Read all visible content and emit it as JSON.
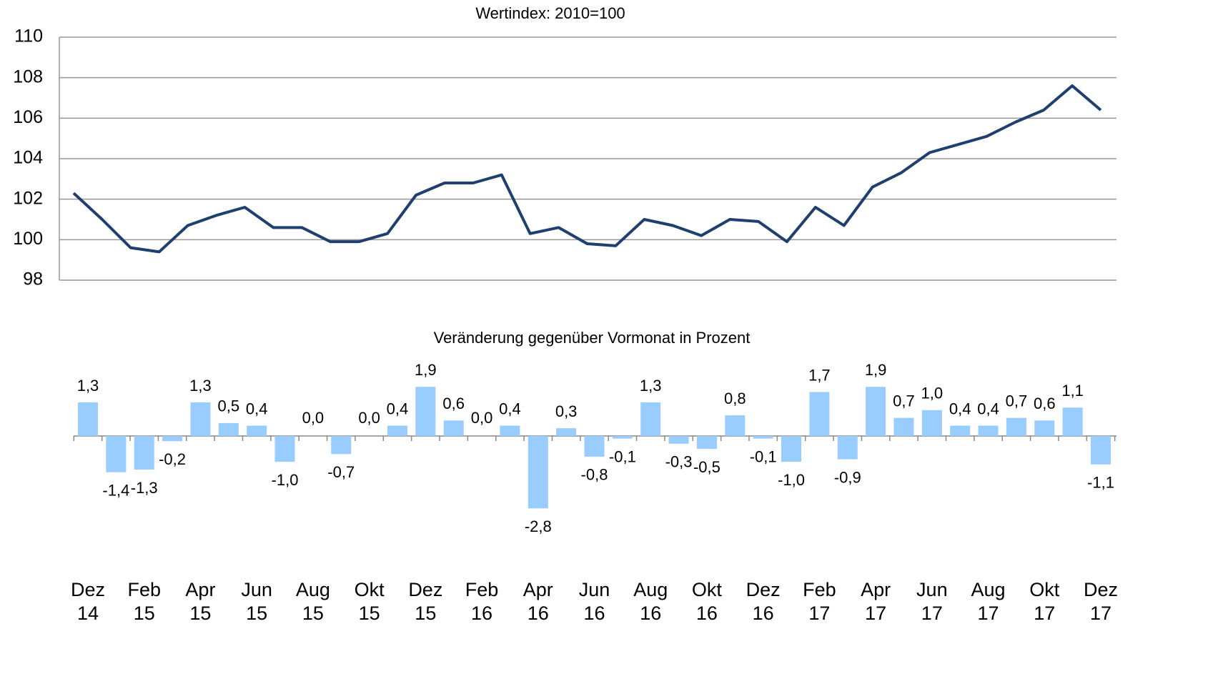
{
  "chart_data": [
    {
      "type": "line",
      "title": "Wertindex: 2010=100",
      "color": "#1f3f6e",
      "values": [
        102.3,
        101.0,
        99.6,
        99.4,
        100.7,
        101.2,
        101.6,
        100.6,
        100.6,
        99.9,
        99.9,
        100.3,
        102.2,
        102.8,
        102.8,
        103.2,
        100.3,
        100.6,
        99.8,
        99.7,
        101.0,
        100.7,
        100.2,
        101.0,
        100.9,
        99.9,
        101.6,
        100.7,
        102.6,
        103.3,
        104.3,
        104.7,
        105.1,
        105.8,
        106.4,
        107.6,
        106.4
      ],
      "ylim": [
        98,
        110
      ],
      "yticks": [
        98,
        100,
        102,
        104,
        106,
        108,
        110
      ],
      "grid": true
    },
    {
      "type": "bar",
      "title": "Veränderung gegenüber Vormonat in Prozent",
      "color": "#99ccff",
      "categories": [
        "Dez 14",
        null,
        "Feb 15",
        null,
        "Apr 15",
        null,
        "Jun 15",
        null,
        "Aug 15",
        null,
        "Okt 15",
        null,
        "Dez 15",
        null,
        "Feb 16",
        null,
        "Apr 16",
        null,
        "Jun 16",
        null,
        "Aug 16",
        null,
        "Okt 16",
        null,
        "Dez 16",
        null,
        "Feb 17",
        null,
        "Apr 17",
        null,
        "Jun 17",
        null,
        "Aug 17",
        null,
        "Okt 17",
        null,
        "Dez 17"
      ],
      "values": [
        1.3,
        -1.4,
        -1.3,
        -0.2,
        1.3,
        0.5,
        0.4,
        -1.0,
        0.0,
        -0.7,
        0.0,
        0.4,
        1.9,
        0.6,
        0.0,
        0.4,
        -2.8,
        0.3,
        -0.8,
        -0.1,
        1.3,
        -0.3,
        -0.5,
        0.8,
        -0.1,
        -1.0,
        1.7,
        -0.9,
        1.9,
        0.7,
        1.0,
        0.4,
        0.4,
        0.7,
        0.6,
        1.1,
        -1.1
      ],
      "value_labels": [
        "1,3",
        "-1,4",
        "-1,3",
        "-0,2",
        "1,3",
        "0,5",
        "0,4",
        "-1,0",
        "0,0",
        "-0,7",
        "0,0",
        "0,4",
        "1,9",
        "0,6",
        "0,0",
        "0,4",
        "-2,8",
        "0,3",
        "-0,8",
        "-0,1",
        "1,3",
        "-0,3",
        "-0,5",
        "0,8",
        "-0,1",
        "-1,0",
        "1,7",
        "-0,9",
        "1,9",
        "0,7",
        "1,0",
        "0,4",
        "0,4",
        "0,7",
        "0,6",
        "1,1",
        "-1,1"
      ]
    }
  ]
}
